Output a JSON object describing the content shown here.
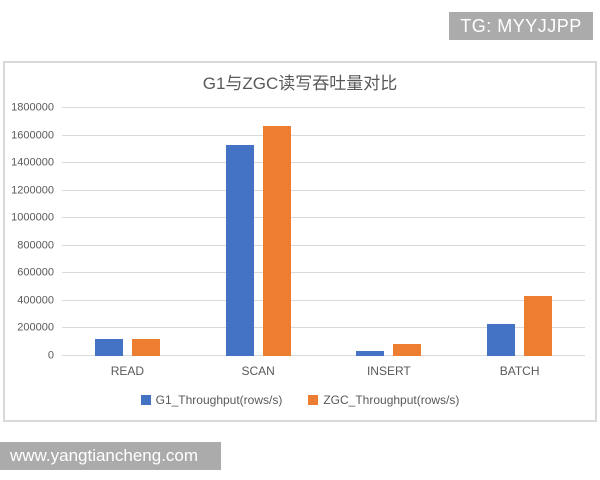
{
  "watermark": {
    "tg_badge": "TG: MYYJJPP",
    "site": "www.yangtiancheng.com"
  },
  "chart_data": {
    "type": "bar",
    "title": "G1与ZGC读写吞吐量对比",
    "categories": [
      "READ",
      "SCAN",
      "INSERT",
      "BATCH"
    ],
    "series": [
      {
        "name": "G1_Throughput(rows/s)",
        "key": "g1",
        "color": "#4472c4",
        "values": [
          125000,
          1530000,
          40000,
          235000
        ]
      },
      {
        "name": "ZGC_Throughput(rows/s)",
        "key": "zgc",
        "color": "#ed7d31",
        "values": [
          122000,
          1670000,
          90000,
          435000
        ]
      }
    ],
    "ylim": [
      0,
      1800000
    ],
    "ytick_step": 200000,
    "grid": true,
    "legend_position": "bottom",
    "colors": {
      "gridline": "#d9d9d9",
      "axis_text": "#595959",
      "title_text": "#595959",
      "frame_border": "#d9d9d9",
      "watermark_bg": "#ababab"
    }
  }
}
